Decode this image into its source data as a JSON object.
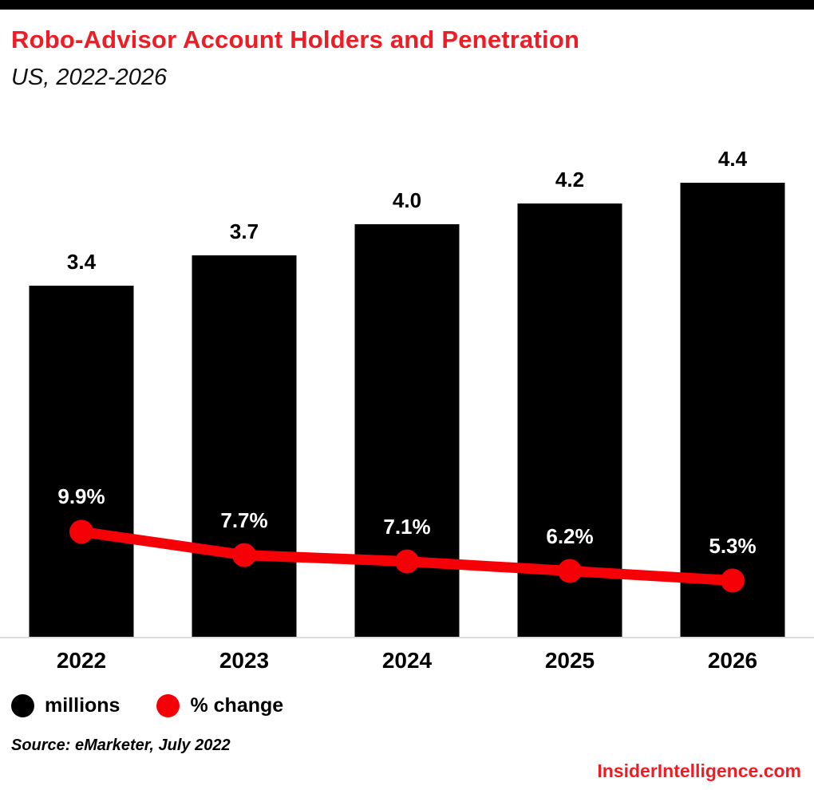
{
  "page": {
    "title": "Robo-Advisor Account Holders and Penetration",
    "subtitle": "US, 2022-2026",
    "source": "Source: eMarketer, July 2022",
    "brand": "InsiderIntelligence.com"
  },
  "colors": {
    "accent_red": "#ee1c25",
    "line_red": "#f60007",
    "bar_black": "#000000",
    "axis_gray": "#dcdcdc"
  },
  "legend": [
    {
      "label": "millions",
      "color": "#000000"
    },
    {
      "label": "% change",
      "color": "#f60007"
    }
  ],
  "chart_data": {
    "type": "bar+line",
    "title": "Robo-Advisor Account Holders and Penetration",
    "subtitle": "US, 2022-2026",
    "categories": [
      "2022",
      "2023",
      "2024",
      "2025",
      "2026"
    ],
    "series": [
      {
        "name": "millions",
        "type": "bar",
        "color": "#000000",
        "values": [
          3.4,
          3.7,
          4.0,
          4.2,
          4.4
        ],
        "labels": [
          "3.4",
          "3.7",
          "4.0",
          "4.2",
          "4.4"
        ]
      },
      {
        "name": "% change",
        "type": "line",
        "color": "#f60007",
        "values": [
          9.9,
          7.7,
          7.1,
          6.2,
          5.3
        ],
        "labels": [
          "9.9%",
          "7.7%",
          "7.1%",
          "6.2%",
          "5.3%"
        ]
      }
    ],
    "ylim_bar": [
      0,
      5
    ],
    "ylim_line_pct": [
      0,
      48
    ],
    "grid": false,
    "legend_position": "bottom-left",
    "source": "Source: eMarketer, July 2022"
  }
}
